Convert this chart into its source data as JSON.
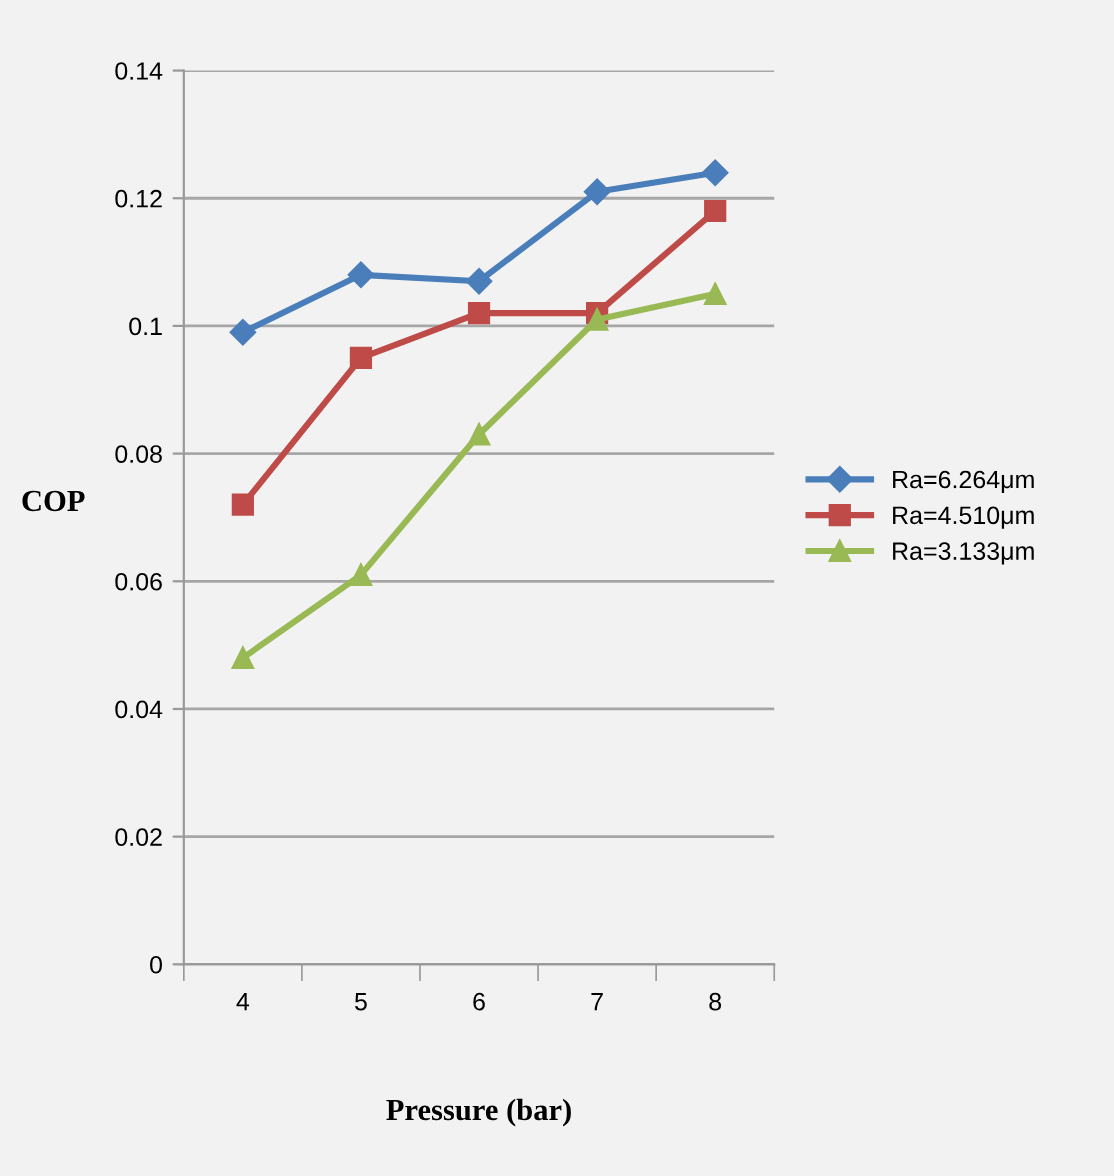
{
  "chart_data": {
    "type": "line",
    "xlabel": "Pressure (bar)",
    "ylabel": "COP",
    "categories": [
      "4",
      "5",
      "6",
      "7",
      "8"
    ],
    "series": [
      {
        "name": "Ra=6.264μm",
        "color": "#4a7ebb",
        "marker": "diamond",
        "values": [
          0.099,
          0.108,
          0.107,
          0.121,
          0.124
        ]
      },
      {
        "name": "Ra=4.510μm",
        "color": "#be4b48",
        "marker": "square",
        "values": [
          0.072,
          0.095,
          0.102,
          0.102,
          0.118
        ]
      },
      {
        "name": "Ra=3.133μm",
        "color": "#98b954",
        "marker": "triangle",
        "values": [
          0.048,
          0.061,
          0.083,
          0.101,
          0.105
        ]
      }
    ],
    "ylim": [
      0,
      0.14
    ],
    "yticks": [
      0,
      0.02,
      0.04,
      0.06,
      0.08,
      0.1,
      0.12,
      0.14
    ],
    "grid": "y",
    "legend": "right",
    "line_style": "solid"
  }
}
